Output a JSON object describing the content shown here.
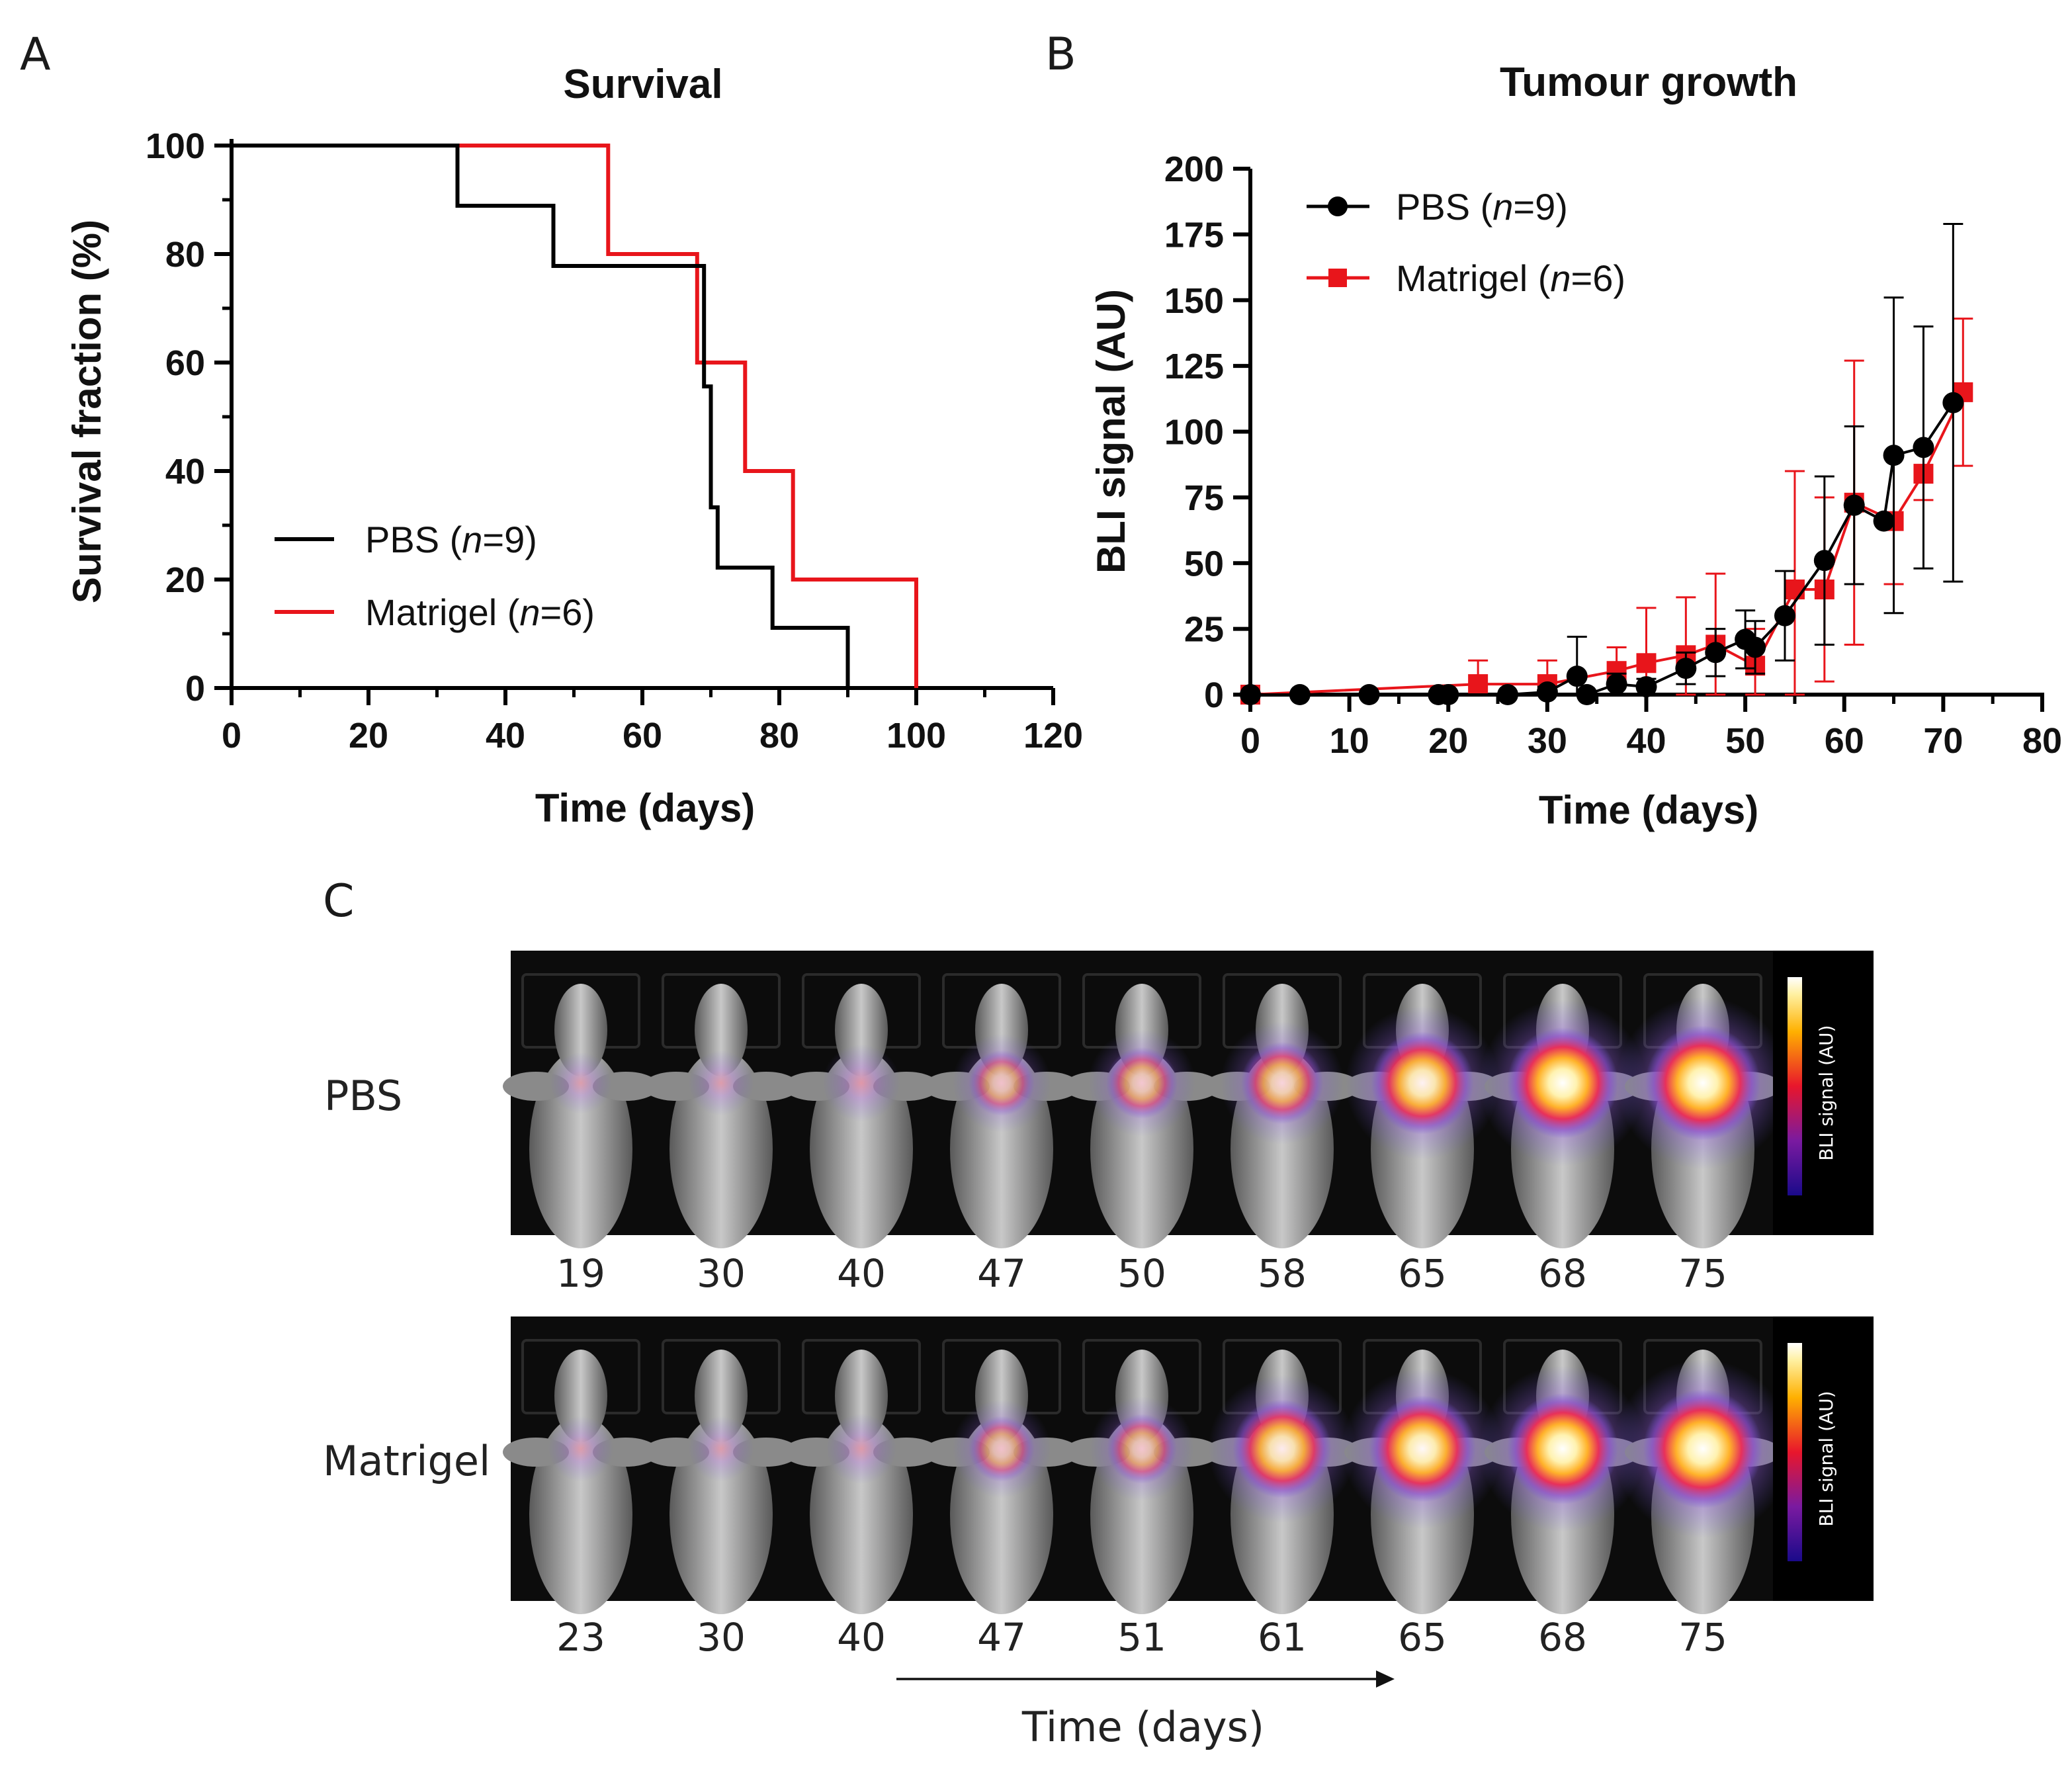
{
  "panels": {
    "a": "A",
    "b": "B",
    "c": "C"
  },
  "colors": {
    "pbs": "#000000",
    "matrigel": "#e8151b"
  },
  "chart_data": [
    {
      "type": "line",
      "subtype": "kaplan-meier-step",
      "title": "Survival",
      "xlabel": "Time (days)",
      "ylabel": "Survival fraction  (%)",
      "xlim": [
        0,
        120
      ],
      "ylim": [
        0,
        100
      ],
      "xticks": [
        0,
        20,
        40,
        60,
        80,
        100,
        120
      ],
      "yticks": [
        0,
        20,
        40,
        60,
        80,
        100
      ],
      "legend": [
        {
          "name": "PBS",
          "n_label": "n",
          "n_value": "=9)",
          "prefix": "PBS (",
          "key": "pbs"
        },
        {
          "name": "Matrigel",
          "n_label": "n",
          "n_value": "=6)",
          "prefix": "Matrigel (",
          "key": "matrigel"
        }
      ],
      "legend_position": "bottom-left",
      "series": [
        {
          "name": "PBS (n=9)",
          "key": "pbs",
          "points": [
            [
              0,
              100
            ],
            [
              33,
              100
            ],
            [
              33,
              88.9
            ],
            [
              47,
              88.9
            ],
            [
              47,
              77.8
            ],
            [
              69,
              77.8
            ],
            [
              69,
              55.6
            ],
            [
              70,
              55.6
            ],
            [
              70,
              33.3
            ],
            [
              71,
              33.3
            ],
            [
              71,
              22.2
            ],
            [
              79,
              22.2
            ],
            [
              79,
              11.1
            ],
            [
              90,
              11.1
            ],
            [
              90,
              0
            ]
          ]
        },
        {
          "name": "Matrigel (n=6)",
          "key": "matrigel",
          "points": [
            [
              0,
              100
            ],
            [
              55,
              100
            ],
            [
              55,
              80
            ],
            [
              68,
              80
            ],
            [
              68,
              60
            ],
            [
              75,
              60
            ],
            [
              75,
              40
            ],
            [
              82,
              40
            ],
            [
              82,
              20
            ],
            [
              100,
              20
            ],
            [
              100,
              0
            ]
          ]
        }
      ]
    },
    {
      "type": "line",
      "subtype": "mean-with-error-bars",
      "title": "Tumour growth",
      "xlabel": "Time (days)",
      "ylabel": "BLI signal (AU)",
      "xlim": [
        0,
        80
      ],
      "ylim": [
        0,
        200
      ],
      "xticks": [
        0,
        10,
        20,
        30,
        40,
        50,
        60,
        70,
        80
      ],
      "yticks": [
        0,
        25,
        50,
        75,
        100,
        125,
        150,
        175,
        200
      ],
      "legend": [
        {
          "prefix": "PBS (",
          "n_label": "n",
          "n_value": "=9)",
          "key": "pbs",
          "marker": "circle"
        },
        {
          "prefix": "Matrigel (",
          "n_label": "n",
          "n_value": "=6)",
          "key": "matrigel",
          "marker": "square"
        }
      ],
      "legend_position": "top-left",
      "series": [
        {
          "name": "PBS (n=9)",
          "key": "pbs",
          "marker": "circle",
          "x": [
            0,
            5,
            12,
            19,
            20,
            26,
            30,
            33,
            34,
            37,
            40,
            44,
            47,
            50,
            51,
            54,
            58,
            61,
            64,
            65,
            68,
            71
          ],
          "y": [
            0,
            0,
            0,
            0,
            0,
            0,
            1,
            7,
            0,
            4,
            3,
            10,
            16,
            21,
            18,
            30,
            51,
            72,
            66,
            91,
            94,
            111
          ],
          "err": [
            0,
            0,
            0,
            0,
            0,
            0,
            2,
            15,
            0,
            4,
            3,
            6,
            9,
            11,
            10,
            17,
            32,
            30,
            0,
            60,
            46,
            68
          ]
        },
        {
          "name": "Matrigel (n=6)",
          "key": "matrigel",
          "marker": "square",
          "x": [
            0,
            23,
            30,
            37,
            40,
            44,
            47,
            51,
            55,
            58,
            61,
            65,
            68,
            72
          ],
          "y": [
            0,
            4,
            4,
            9,
            12,
            15,
            19,
            11,
            40,
            40,
            73,
            66,
            84,
            115
          ],
          "err": [
            0,
            9,
            9,
            9,
            21,
            22,
            27,
            14,
            45,
            35,
            54,
            24,
            10,
            28
          ]
        }
      ]
    }
  ],
  "imaging": {
    "rows": [
      {
        "label": "PBS",
        "days": [
          "19",
          "30",
          "40",
          "47",
          "50",
          "58",
          "65",
          "68",
          "75"
        ],
        "intensity": [
          0.05,
          0.08,
          0.18,
          0.35,
          0.42,
          0.55,
          0.8,
          0.9,
          0.95
        ]
      },
      {
        "label": "Matrigel",
        "days": [
          "23",
          "30",
          "40",
          "47",
          "51",
          "61",
          "65",
          "68",
          "75"
        ],
        "intensity": [
          0.08,
          0.08,
          0.12,
          0.35,
          0.4,
          0.75,
          0.85,
          0.9,
          1.0
        ]
      }
    ],
    "colorbar_label": "BLI signal (AU)",
    "axis_label": "Time (days)"
  }
}
